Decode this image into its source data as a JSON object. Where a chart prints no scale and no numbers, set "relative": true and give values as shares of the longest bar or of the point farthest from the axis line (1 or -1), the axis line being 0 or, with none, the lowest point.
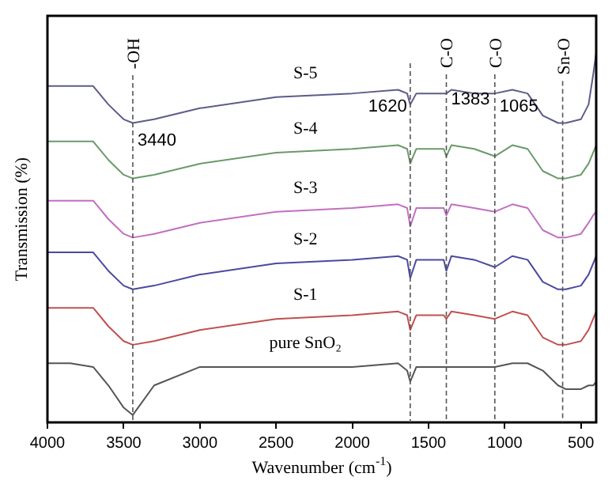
{
  "chart_data": {
    "type": "line",
    "relative": true,
    "xlabel": "Wavenumber (cm$^{-1}$)",
    "ylabel": "Transmission (%)",
    "x": [
      4000,
      3850,
      3700,
      3600,
      3500,
      3440,
      3300,
      3000,
      2500,
      2000,
      1700,
      1640,
      1620,
      1580,
      1450,
      1400,
      1383,
      1350,
      1200,
      1065,
      950,
      850,
      750,
      650,
      600,
      500,
      450,
      420,
      400
    ],
    "xlim": [
      4000,
      400
    ],
    "xticks": [
      4000,
      3500,
      3000,
      2500,
      2000,
      1500,
      1000,
      500
    ],
    "series": [
      {
        "name": "S-5",
        "color": "#5c5c8c",
        "values": [
          0.91,
          0.91,
          0.91,
          0.86,
          0.82,
          0.81,
          0.82,
          0.85,
          0.88,
          0.89,
          0.9,
          0.89,
          0.86,
          0.89,
          0.89,
          0.89,
          0.89,
          0.9,
          0.89,
          0.89,
          0.9,
          0.89,
          0.83,
          0.81,
          0.81,
          0.82,
          0.86,
          0.94,
          1
        ]
      },
      {
        "name": "S-4",
        "color": "#6a9a6a",
        "values": [
          0.76,
          0.76,
          0.76,
          0.71,
          0.67,
          0.66,
          0.67,
          0.7,
          0.73,
          0.74,
          0.75,
          0.74,
          0.7,
          0.74,
          0.74,
          0.74,
          0.72,
          0.75,
          0.74,
          0.72,
          0.75,
          0.74,
          0.68,
          0.66,
          0.66,
          0.67,
          0.7,
          0.73,
          0.75
        ]
      },
      {
        "name": "S-3",
        "color": "#c070c0",
        "values": [
          0.6,
          0.6,
          0.6,
          0.55,
          0.51,
          0.5,
          0.51,
          0.54,
          0.57,
          0.58,
          0.59,
          0.58,
          0.53,
          0.58,
          0.58,
          0.58,
          0.56,
          0.59,
          0.58,
          0.57,
          0.59,
          0.58,
          0.52,
          0.5,
          0.5,
          0.51,
          0.54,
          0.56,
          0.57
        ]
      },
      {
        "name": "S-2",
        "color": "#4a4aa0",
        "values": [
          0.46,
          0.46,
          0.46,
          0.41,
          0.37,
          0.36,
          0.37,
          0.4,
          0.43,
          0.44,
          0.45,
          0.44,
          0.39,
          0.44,
          0.44,
          0.44,
          0.41,
          0.45,
          0.44,
          0.42,
          0.45,
          0.44,
          0.38,
          0.36,
          0.36,
          0.37,
          0.4,
          0.43,
          0.45
        ]
      },
      {
        "name": "S-1",
        "color": "#c05050",
        "values": [
          0.31,
          0.31,
          0.31,
          0.26,
          0.22,
          0.21,
          0.22,
          0.25,
          0.28,
          0.29,
          0.3,
          0.29,
          0.25,
          0.29,
          0.29,
          0.29,
          0.28,
          0.3,
          0.29,
          0.28,
          0.3,
          0.29,
          0.23,
          0.21,
          0.21,
          0.22,
          0.25,
          0.28,
          0.3
        ]
      },
      {
        "name": "pure SnO₂",
        "color": "#555555",
        "values": [
          0.16,
          0.16,
          0.15,
          0.1,
          0.04,
          0.02,
          0.1,
          0.15,
          0.15,
          0.15,
          0.16,
          0.14,
          0.11,
          0.15,
          0.15,
          0.15,
          0.15,
          0.15,
          0.15,
          0.15,
          0.16,
          0.16,
          0.14,
          0.1,
          0.09,
          0.09,
          0.1,
          0.1,
          0.11
        ]
      }
    ],
    "ref_lines": [
      {
        "axis": "x",
        "value": 3440,
        "label": "-OH",
        "line_style": "dashed"
      },
      {
        "axis": "x",
        "value": 1620,
        "label": null,
        "line_style": "dashed"
      },
      {
        "axis": "x",
        "value": 1383,
        "label": "C-O",
        "line_style": "dashed"
      },
      {
        "axis": "x",
        "value": 1065,
        "label": "C-O",
        "line_style": "dashed"
      },
      {
        "axis": "x",
        "value": 620,
        "label": "Sn-O",
        "line_style": "dashed"
      }
    ],
    "annotations": [
      {
        "text": "3440",
        "x": 3440,
        "y": 0.75
      },
      {
        "text": "1620",
        "x": 1620,
        "y": 0.84
      },
      {
        "text": "1383",
        "x": 1383,
        "y": 0.86
      },
      {
        "text": "1065",
        "x": 1065,
        "y": 0.84
      }
    ],
    "legend": false,
    "grid": false,
    "marker": "none",
    "line_style": "solid"
  }
}
